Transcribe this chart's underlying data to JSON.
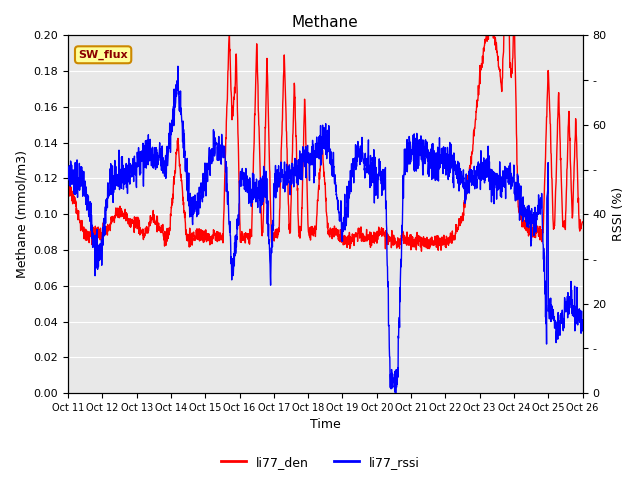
{
  "title": "Methane",
  "ylabel_left": "Methane (mmol/m3)",
  "ylabel_right": "RSSI (%)",
  "xlabel": "Time",
  "ylim_left": [
    0.0,
    0.2
  ],
  "ylim_right": [
    0,
    80
  ],
  "yticks_left": [
    0.0,
    0.02,
    0.04,
    0.06,
    0.08,
    0.1,
    0.12,
    0.14,
    0.16,
    0.18,
    0.2
  ],
  "yticks_right": [
    0,
    10,
    20,
    30,
    40,
    50,
    60,
    70,
    80
  ],
  "color_red": "#ff0000",
  "color_blue": "#0000ff",
  "bg_color": "#e8e8e8",
  "fig_bg": "#ffffff",
  "sw_flux_label": "SW_flux",
  "sw_flux_bg": "#ffff99",
  "sw_flux_border": "#cc8800",
  "legend_red": "li77_den",
  "legend_blue": "li77_rssi",
  "title_fontsize": 11,
  "axis_fontsize": 9,
  "tick_fontsize": 8,
  "linewidth": 1.0
}
